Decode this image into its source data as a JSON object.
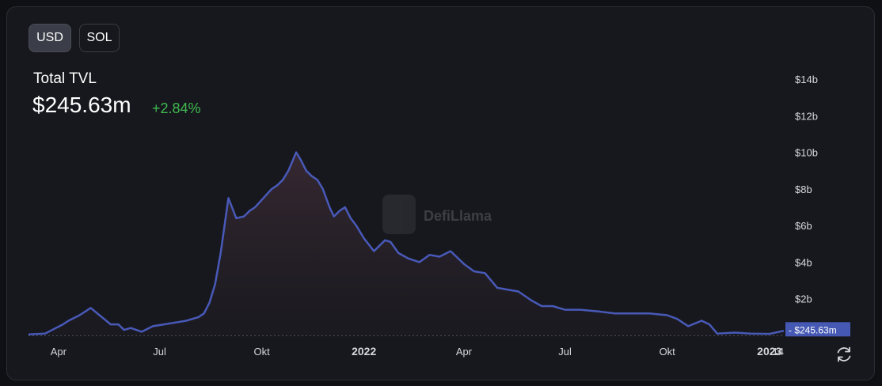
{
  "toggles": {
    "usd": "USD",
    "sol": "SOL"
  },
  "header": {
    "title": "Total TVL",
    "value": "$245.63m",
    "change": "+2.84%"
  },
  "watermark": "DefiLlama",
  "colors": {
    "line": "#4859b8",
    "change": "#3fb950",
    "badge": "#4559b4"
  },
  "icons": {
    "refresh": "refresh-icon",
    "logo": "defillama-logo-icon"
  },
  "chart_data": {
    "type": "area",
    "title": "Total TVL",
    "ylabel": "",
    "xlabel": "",
    "ylim": [
      0,
      14
    ],
    "y_unit": "billion USD",
    "y_ticks": [
      "$2b",
      "$4b",
      "$6b",
      "$8b",
      "$10b",
      "$12b",
      "$14b"
    ],
    "y_tick_values": [
      2,
      4,
      6,
      8,
      10,
      12,
      14
    ],
    "x_ticks": [
      "Apr",
      "Jul",
      "Okt",
      "2022",
      "Apr",
      "Jul",
      "Okt",
      "2023",
      "14"
    ],
    "x_tick_dates": [
      "2021-04-01",
      "2021-07-01",
      "2021-10-01",
      "2022-01-01",
      "2022-04-01",
      "2022-07-01",
      "2022-10-01",
      "2023-01-01",
      "2023-01-14"
    ],
    "x_tick_bold": [
      false,
      false,
      false,
      true,
      false,
      false,
      false,
      true,
      false
    ],
    "current_label": "$245.63m",
    "current_value": 0.24563,
    "x": [
      "2021-03-05",
      "2021-03-20",
      "2021-04-05",
      "2021-04-10",
      "2021-04-20",
      "2021-04-30",
      "2021-05-10",
      "2021-05-18",
      "2021-05-25",
      "2021-05-30",
      "2021-06-05",
      "2021-06-15",
      "2021-06-25",
      "2021-07-05",
      "2021-07-15",
      "2021-07-25",
      "2021-08-05",
      "2021-08-10",
      "2021-08-15",
      "2021-08-20",
      "2021-08-25",
      "2021-09-01",
      "2021-09-08",
      "2021-09-15",
      "2021-09-20",
      "2021-09-25",
      "2021-10-01",
      "2021-10-10",
      "2021-10-15",
      "2021-10-20",
      "2021-10-25",
      "2021-11-01",
      "2021-11-05",
      "2021-11-10",
      "2021-11-15",
      "2021-11-20",
      "2021-11-25",
      "2021-12-01",
      "2021-12-05",
      "2021-12-10",
      "2021-12-15",
      "2021-12-20",
      "2021-12-25",
      "2022-01-01",
      "2022-01-10",
      "2022-01-15",
      "2022-01-20",
      "2022-01-25",
      "2022-02-01",
      "2022-02-10",
      "2022-02-20",
      "2022-03-01",
      "2022-03-10",
      "2022-03-20",
      "2022-04-01",
      "2022-04-10",
      "2022-04-20",
      "2022-05-01",
      "2022-05-10",
      "2022-05-20",
      "2022-06-01",
      "2022-06-10",
      "2022-06-20",
      "2022-07-01",
      "2022-07-15",
      "2022-08-01",
      "2022-08-15",
      "2022-09-01",
      "2022-09-15",
      "2022-10-01",
      "2022-10-10",
      "2022-10-20",
      "2022-11-01",
      "2022-11-08",
      "2022-11-15",
      "2022-12-01",
      "2022-12-15",
      "2023-01-01",
      "2023-01-14"
    ],
    "values": [
      0.05,
      0.1,
      0.6,
      0.8,
      1.1,
      1.5,
      1.0,
      0.6,
      0.6,
      0.3,
      0.4,
      0.2,
      0.5,
      0.6,
      0.7,
      0.8,
      1.0,
      1.2,
      1.8,
      2.8,
      4.5,
      7.5,
      6.4,
      6.5,
      6.8,
      7.0,
      7.4,
      8.0,
      8.2,
      8.5,
      9.0,
      10.0,
      9.6,
      9.0,
      8.7,
      8.5,
      8.0,
      7.0,
      6.5,
      6.8,
      7.0,
      6.4,
      6.0,
      5.3,
      4.6,
      4.9,
      5.2,
      5.1,
      4.5,
      4.2,
      4.0,
      4.4,
      4.3,
      4.6,
      3.9,
      3.5,
      3.4,
      2.6,
      2.5,
      2.4,
      1.9,
      1.6,
      1.6,
      1.4,
      1.4,
      1.3,
      1.2,
      1.2,
      1.2,
      1.1,
      0.9,
      0.5,
      0.8,
      0.6,
      0.1,
      0.15,
      0.1,
      0.08,
      0.25
    ]
  }
}
